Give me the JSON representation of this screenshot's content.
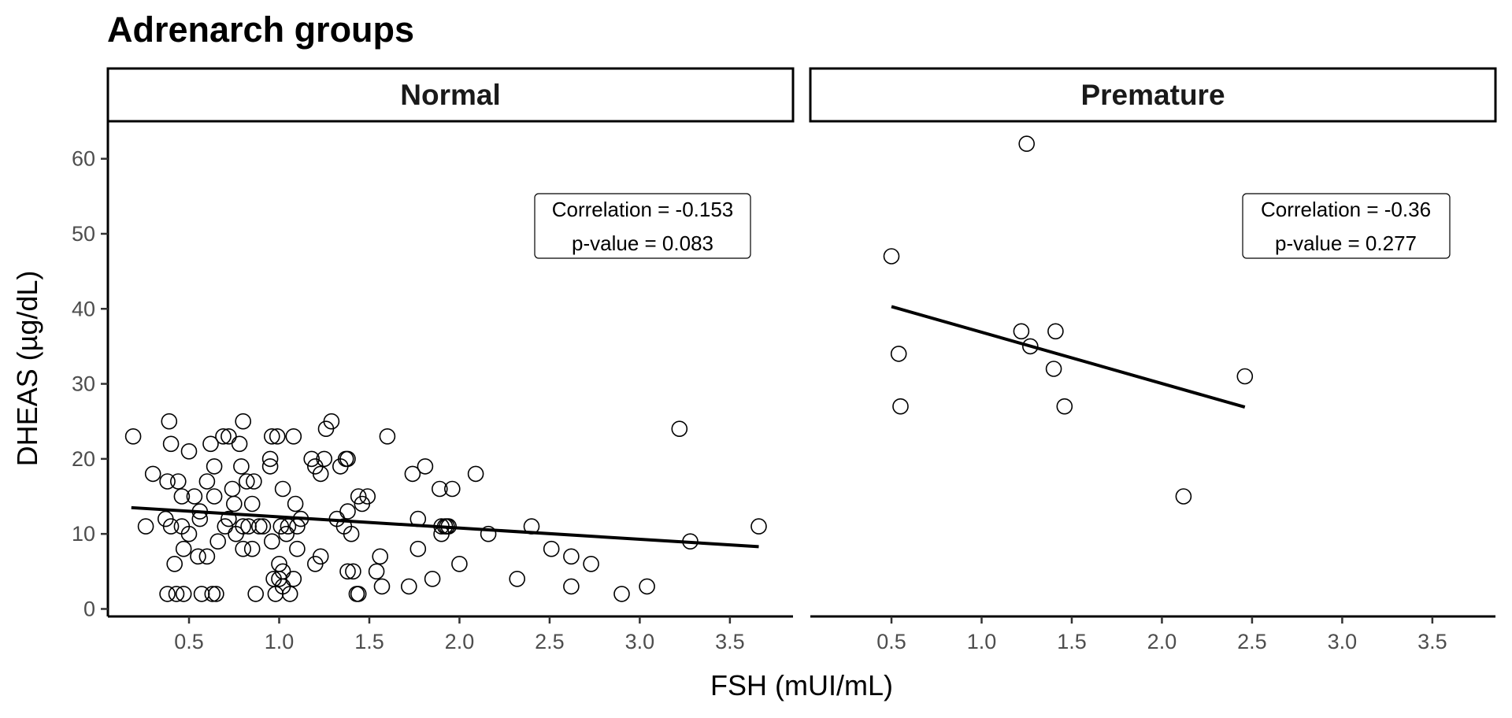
{
  "chart_data": {
    "type": "scatter",
    "title": "Adrenarch groups",
    "xlabel": "FSH (mUI/mL)",
    "ylabel": "DHEAS (µg/dL)",
    "xlim": [
      0.05,
      3.85
    ],
    "ylim": [
      -1,
      65
    ],
    "x_ticks": [
      "0.5",
      "1.0",
      "1.5",
      "2.0",
      "2.5",
      "3.0",
      "3.5"
    ],
    "y_ticks": [
      "0",
      "10",
      "20",
      "30",
      "40",
      "50",
      "60"
    ],
    "grid": false,
    "marker": "open-circle",
    "panels": [
      {
        "name": "Normal",
        "annotation": [
          "Correlation = -0.153",
          "p-value = 0.083"
        ],
        "fit_line": {
          "x": [
            0.18,
            3.66
          ],
          "y": [
            13.5,
            8.3
          ]
        },
        "points": [
          [
            0.19,
            23
          ],
          [
            0.26,
            11
          ],
          [
            0.3,
            18
          ],
          [
            0.37,
            12
          ],
          [
            0.38,
            17
          ],
          [
            0.38,
            2
          ],
          [
            0.39,
            25
          ],
          [
            0.4,
            22
          ],
          [
            0.4,
            11
          ],
          [
            0.42,
            6
          ],
          [
            0.43,
            2
          ],
          [
            0.44,
            17
          ],
          [
            0.46,
            15
          ],
          [
            0.46,
            11
          ],
          [
            0.47,
            8
          ],
          [
            0.47,
            2
          ],
          [
            0.5,
            10
          ],
          [
            0.5,
            21
          ],
          [
            0.53,
            15
          ],
          [
            0.55,
            7
          ],
          [
            0.56,
            13
          ],
          [
            0.56,
            12
          ],
          [
            0.57,
            2
          ],
          [
            0.6,
            17
          ],
          [
            0.6,
            7
          ],
          [
            0.62,
            22
          ],
          [
            0.63,
            2
          ],
          [
            0.64,
            19
          ],
          [
            0.64,
            15
          ],
          [
            0.65,
            2
          ],
          [
            0.66,
            9
          ],
          [
            0.69,
            23
          ],
          [
            0.7,
            11
          ],
          [
            0.72,
            12
          ],
          [
            0.72,
            23
          ],
          [
            0.74,
            16
          ],
          [
            0.75,
            14
          ],
          [
            0.76,
            10
          ],
          [
            0.78,
            22
          ],
          [
            0.79,
            19
          ],
          [
            0.8,
            11
          ],
          [
            0.8,
            25
          ],
          [
            0.8,
            8
          ],
          [
            0.82,
            17
          ],
          [
            0.83,
            11
          ],
          [
            0.85,
            14
          ],
          [
            0.85,
            8
          ],
          [
            0.86,
            17
          ],
          [
            0.87,
            2
          ],
          [
            0.89,
            11
          ],
          [
            0.91,
            11
          ],
          [
            0.95,
            20
          ],
          [
            0.95,
            19
          ],
          [
            0.96,
            9
          ],
          [
            0.96,
            23
          ],
          [
            0.97,
            4
          ],
          [
            0.98,
            2
          ],
          [
            0.99,
            23
          ],
          [
            1.0,
            4
          ],
          [
            1.0,
            6
          ],
          [
            1.01,
            11
          ],
          [
            1.02,
            16
          ],
          [
            1.02,
            3
          ],
          [
            1.02,
            5
          ],
          [
            1.04,
            10
          ],
          [
            1.05,
            11
          ],
          [
            1.06,
            2
          ],
          [
            1.08,
            23
          ],
          [
            1.08,
            4
          ],
          [
            1.09,
            14
          ],
          [
            1.1,
            11
          ],
          [
            1.1,
            8
          ],
          [
            1.12,
            12
          ],
          [
            1.18,
            20
          ],
          [
            1.2,
            19
          ],
          [
            1.2,
            6
          ],
          [
            1.23,
            18
          ],
          [
            1.23,
            7
          ],
          [
            1.25,
            20
          ],
          [
            1.26,
            24
          ],
          [
            1.29,
            25
          ],
          [
            1.32,
            12
          ],
          [
            1.34,
            19
          ],
          [
            1.36,
            11
          ],
          [
            1.37,
            20
          ],
          [
            1.38,
            20
          ],
          [
            1.38,
            13
          ],
          [
            1.38,
            5
          ],
          [
            1.4,
            10
          ],
          [
            1.41,
            5
          ],
          [
            1.43,
            2
          ],
          [
            1.44,
            15
          ],
          [
            1.44,
            2
          ],
          [
            1.46,
            14
          ],
          [
            1.49,
            15
          ],
          [
            1.54,
            5
          ],
          [
            1.56,
            7
          ],
          [
            1.57,
            3
          ],
          [
            1.6,
            23
          ],
          [
            1.72,
            3
          ],
          [
            1.74,
            18
          ],
          [
            1.77,
            12
          ],
          [
            1.77,
            8
          ],
          [
            1.81,
            19
          ],
          [
            1.85,
            4
          ],
          [
            1.89,
            16
          ],
          [
            1.9,
            10
          ],
          [
            1.9,
            11
          ],
          [
            1.92,
            11
          ],
          [
            1.93,
            11
          ],
          [
            1.94,
            11
          ],
          [
            1.96,
            16
          ],
          [
            2.0,
            6
          ],
          [
            2.09,
            18
          ],
          [
            2.16,
            10
          ],
          [
            2.32,
            4
          ],
          [
            2.4,
            11
          ],
          [
            2.51,
            8
          ],
          [
            2.62,
            7
          ],
          [
            2.62,
            3
          ],
          [
            2.73,
            6
          ],
          [
            2.9,
            2
          ],
          [
            3.04,
            3
          ],
          [
            3.22,
            24
          ],
          [
            3.28,
            9
          ],
          [
            3.66,
            11
          ]
        ]
      },
      {
        "name": "Premature",
        "annotation": [
          "Correlation = -0.36",
          "p-value = 0.277"
        ],
        "fit_line": {
          "x": [
            0.5,
            2.46
          ],
          "y": [
            40.3,
            26.9
          ]
        },
        "points": [
          [
            0.5,
            47
          ],
          [
            0.54,
            34
          ],
          [
            0.55,
            27
          ],
          [
            1.22,
            37
          ],
          [
            1.25,
            62
          ],
          [
            1.27,
            35
          ],
          [
            1.4,
            32
          ],
          [
            1.41,
            37
          ],
          [
            1.46,
            27
          ],
          [
            2.12,
            15
          ],
          [
            2.46,
            31
          ]
        ]
      }
    ]
  }
}
